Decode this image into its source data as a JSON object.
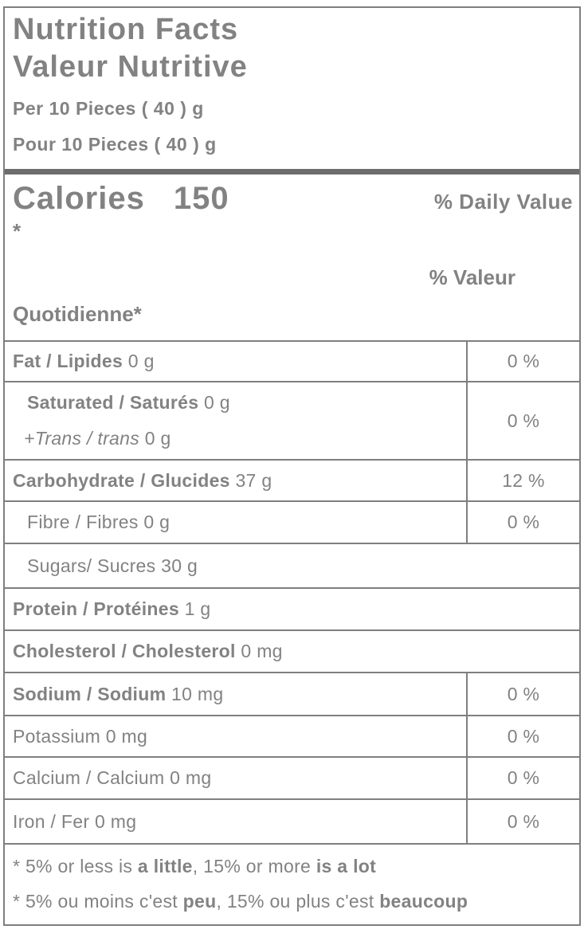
{
  "colors": {
    "text": "#828282",
    "line": "#7f7f7f",
    "thick_line": "#6d6d6d",
    "background": "#ffffff"
  },
  "header": {
    "title_en": "Nutrition Facts",
    "title_fr": "Valeur Nutritive",
    "serving_en": "Per 10 Pieces ( 40 ) g",
    "serving_fr": "Pour 10 Pieces ( 40 ) g"
  },
  "calories": {
    "label": "Calories",
    "value": "150"
  },
  "daily_value_header": {
    "en_line1": "% Daily Value",
    "en_line2": "*",
    "fr_line1": "% Valeur",
    "fr_line2": "Quotidienne*"
  },
  "nutrients": [
    {
      "name": "fat",
      "lines": [
        {
          "indent": 0,
          "seg": [
            {
              "t": "Fat / Lipides",
              "b": true
            },
            {
              "t": " 0 g"
            }
          ]
        }
      ],
      "dv": "0 %"
    },
    {
      "name": "saturated-trans",
      "lines": [
        {
          "indent": 1,
          "seg": [
            {
              "t": "Saturated / Saturés",
              "b": true
            },
            {
              "t": " 0 g"
            }
          ]
        },
        {
          "indent": 2,
          "seg": [
            {
              "t": "+Trans / trans",
              "i": true
            },
            {
              "t": " 0 g"
            }
          ]
        }
      ],
      "dv": "0 %"
    },
    {
      "name": "carbohydrate",
      "lines": [
        {
          "indent": 0,
          "seg": [
            {
              "t": "Carbohydrate / Glucides",
              "b": true
            },
            {
              "t": " 37 g"
            }
          ]
        }
      ],
      "dv": "12 %"
    },
    {
      "name": "fibre",
      "lines": [
        {
          "indent": 1,
          "seg": [
            {
              "t": "Fibre / Fibres 0 g"
            }
          ]
        }
      ],
      "dv": "0 %"
    },
    {
      "name": "sugars",
      "lines": [
        {
          "indent": 1,
          "seg": [
            {
              "t": "Sugars/ Sucres 30 g"
            }
          ]
        }
      ],
      "dv": null
    },
    {
      "name": "protein",
      "lines": [
        {
          "indent": 0,
          "seg": [
            {
              "t": "Protein / Protéines",
              "b": true
            },
            {
              "t": " 1 g"
            }
          ]
        }
      ],
      "dv": null
    },
    {
      "name": "cholesterol",
      "lines": [
        {
          "indent": 0,
          "seg": [
            {
              "t": "Cholesterol / Cholesterol",
              "b": true
            },
            {
              "t": " 0 mg"
            }
          ]
        }
      ],
      "dv": null
    },
    {
      "name": "sodium",
      "lines": [
        {
          "indent": 0,
          "seg": [
            {
              "t": "Sodium / Sodium",
              "b": true
            },
            {
              "t": " 10 mg"
            }
          ]
        }
      ],
      "dv": "0 %"
    },
    {
      "name": "potassium",
      "lines": [
        {
          "indent": 0,
          "seg": [
            {
              "t": "Potassium 0 mg"
            }
          ]
        }
      ],
      "dv": "0 %"
    },
    {
      "name": "calcium",
      "lines": [
        {
          "indent": 0,
          "seg": [
            {
              "t": "Calcium / Calcium 0 mg"
            }
          ]
        }
      ],
      "dv": "0 %"
    },
    {
      "name": "iron",
      "lines": [
        {
          "indent": 0,
          "seg": [
            {
              "t": "Iron / Fer 0 mg"
            }
          ]
        }
      ],
      "dv": "0 %"
    }
  ],
  "footnotes": [
    {
      "name": "footnote-en",
      "segments": [
        {
          "t": "* 5% or less is "
        },
        {
          "t": "a little",
          "b": true
        },
        {
          "t": ", 15% or more "
        },
        {
          "t": "is a lot",
          "b": true
        }
      ]
    },
    {
      "name": "footnote-fr",
      "segments": [
        {
          "t": "* 5% ou moins c'est "
        },
        {
          "t": "peu",
          "b": true
        },
        {
          "t": ", 15% ou plus c'est "
        },
        {
          "t": "beaucoup",
          "b": true
        }
      ]
    }
  ]
}
